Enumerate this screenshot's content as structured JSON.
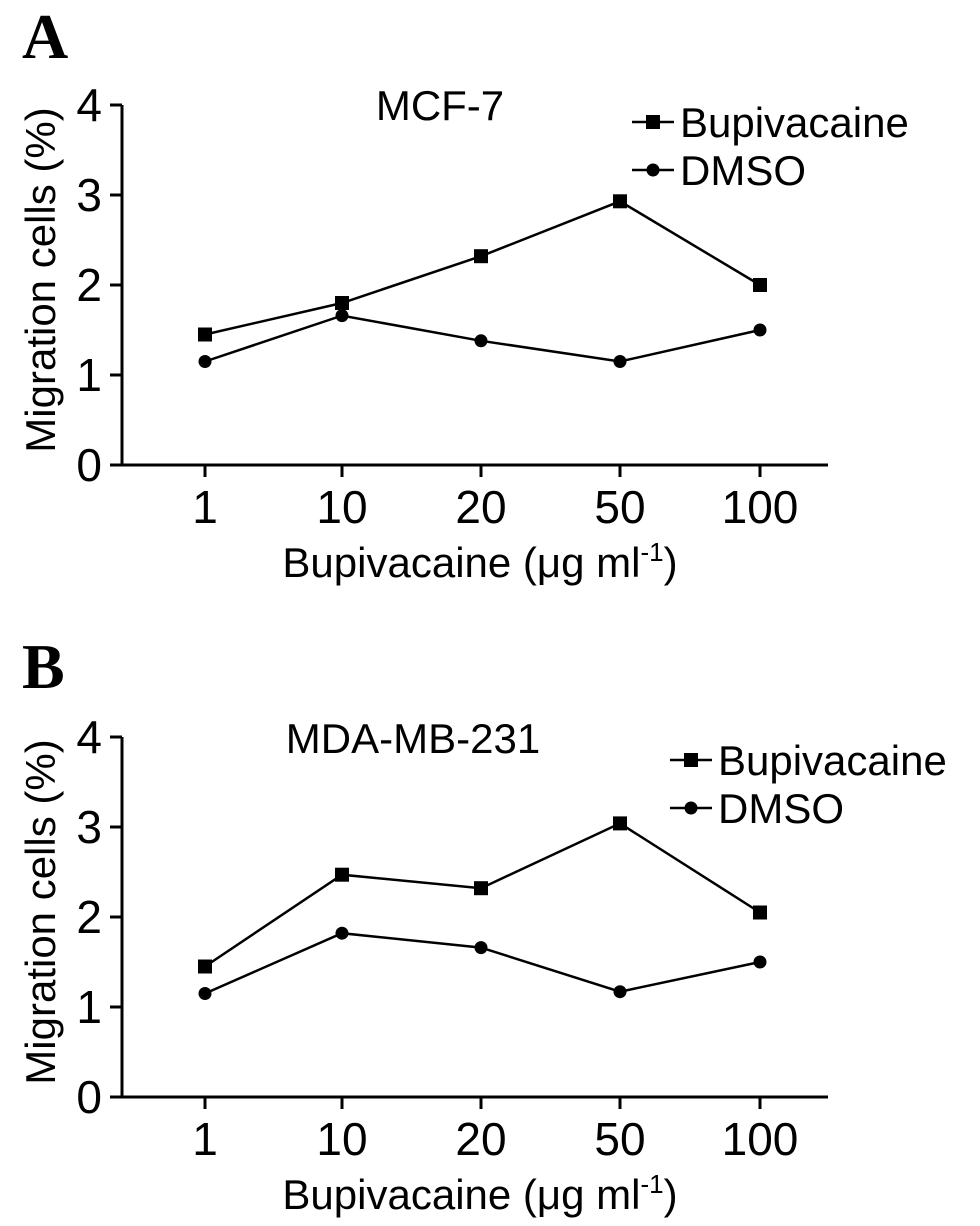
{
  "chart_data": [
    {
      "panel": "A",
      "type": "line",
      "title": "MCF-7",
      "categories": [
        "1",
        "10",
        "20",
        "50",
        "100"
      ],
      "xlabel": "Bupivacaine (μg ml",
      "xlabel_sup": "-1",
      "xlabel_close": ")",
      "ylabel": "Migration cells (%)",
      "ylim": [
        0,
        4
      ],
      "yticks": [
        "0",
        "1",
        "2",
        "3",
        "4"
      ],
      "grid": false,
      "legend_position": "top-right",
      "series": [
        {
          "name": "Bupivacaine",
          "marker": "square",
          "values": [
            1.45,
            1.8,
            2.32,
            2.93,
            2.0
          ]
        },
        {
          "name": "DMSO",
          "marker": "circle",
          "values": [
            1.15,
            1.66,
            1.38,
            1.15,
            1.5
          ]
        }
      ]
    },
    {
      "panel": "B",
      "type": "line",
      "title": "MDA-MB-231",
      "categories": [
        "1",
        "10",
        "20",
        "50",
        "100"
      ],
      "xlabel": "Bupivacaine (μg ml",
      "xlabel_sup": "-1",
      "xlabel_close": ")",
      "ylabel": "Migration cells (%)",
      "ylim": [
        0,
        4
      ],
      "yticks": [
        "0",
        "1",
        "2",
        "3",
        "4"
      ],
      "grid": false,
      "legend_position": "top-right",
      "series": [
        {
          "name": "Bupivacaine",
          "marker": "square",
          "values": [
            1.45,
            2.47,
            2.32,
            3.04,
            2.05
          ]
        },
        {
          "name": "DMSO",
          "marker": "circle",
          "values": [
            1.15,
            1.82,
            1.66,
            1.17,
            1.5
          ]
        }
      ]
    }
  ]
}
